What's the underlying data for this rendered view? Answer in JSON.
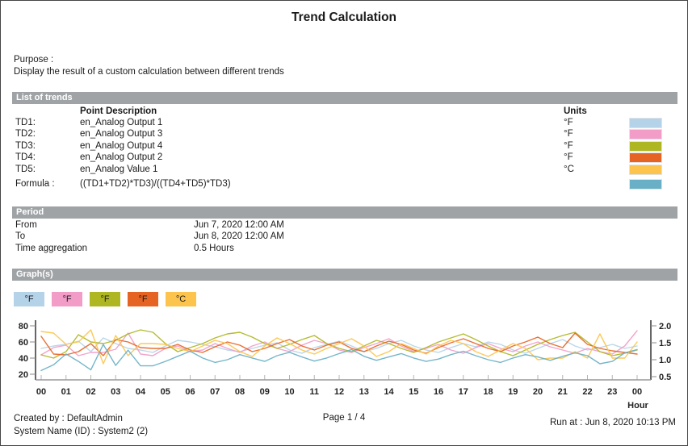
{
  "title": "Trend Calculation",
  "purpose": {
    "label": "Purpose :",
    "text": "Display the result of a custom calculation between different trends"
  },
  "sections": {
    "trends": "List of trends",
    "period": "Period",
    "graphs": "Graph(s)"
  },
  "trends": {
    "header": {
      "description": "Point Description",
      "units": "Units"
    },
    "rows": [
      {
        "id": "TD1:",
        "description": "en_Analog Output 1",
        "unit": "°F",
        "color": "#b4d2e8"
      },
      {
        "id": "TD2:",
        "description": "en_Analog Output 3",
        "unit": "°F",
        "color": "#f29cc8"
      },
      {
        "id": "TD3:",
        "description": "en_Analog Output 4",
        "unit": "°F",
        "color": "#aeb621"
      },
      {
        "id": "TD4:",
        "description": "en_Analog Output 2",
        "unit": "°F",
        "color": "#e56424"
      },
      {
        "id": "TD5:",
        "description": "en_Analog Value 1",
        "unit": "°C",
        "color": "#fcc44d"
      }
    ],
    "formula": {
      "label": "Formula :",
      "expression": "((TD1+TD2)*TD3)/((TD4+TD5)*TD3)",
      "color": "#69b0c6"
    }
  },
  "period": {
    "rows": [
      {
        "label": "From",
        "value": "Jun 7, 2020 12:00 AM"
      },
      {
        "label": "To",
        "value": "Jun 8, 2020 12:00 AM"
      },
      {
        "label": "Time aggregation",
        "value": "0.5 Hours"
      }
    ]
  },
  "legend": [
    {
      "label": "°F",
      "color": "#b4d2e8"
    },
    {
      "label": "°F",
      "color": "#f29cc8"
    },
    {
      "label": "°F",
      "color": "#aeb621"
    },
    {
      "label": "°F",
      "color": "#e56424"
    },
    {
      "label": "°C",
      "color": "#fcc44d"
    }
  ],
  "chart_data": {
    "type": "line",
    "x_label": "Hour",
    "x_start": 0,
    "x_step": 0.5,
    "x_tick_labels": [
      "00",
      "01",
      "02",
      "03",
      "04",
      "05",
      "06",
      "07",
      "08",
      "09",
      "10",
      "11",
      "12",
      "13",
      "14",
      "15",
      "16",
      "17",
      "18",
      "19",
      "20",
      "21",
      "22",
      "23",
      "00"
    ],
    "left_axis": {
      "ticks": [
        "80",
        "60",
        "40",
        "20"
      ],
      "min": 20,
      "max": 80
    },
    "right_axis": {
      "ticks": [
        "2.0",
        "1.5",
        "1.0",
        "0.5"
      ],
      "min": 0.5,
      "max": 2.0
    },
    "grid": false,
    "legend_position": "top-left",
    "series": [
      {
        "name": "TD1 en_Analog Output 1 (°F)",
        "axis": "left",
        "color": "#b4d2e8",
        "values": [
          52,
          55,
          57,
          61,
          48,
          65,
          58,
          52,
          50,
          47,
          55,
          62,
          60,
          57,
          54,
          50,
          48,
          52,
          56,
          59,
          50,
          46,
          53,
          57,
          61,
          55,
          48,
          52,
          58,
          62,
          55,
          50,
          47,
          53,
          58,
          54,
          60,
          57,
          50,
          46,
          52,
          58,
          63,
          55,
          50,
          53,
          57,
          52,
          55
        ]
      },
      {
        "name": "TD2 en_Analog Output 3 (°F)",
        "axis": "left",
        "color": "#f29cc8",
        "values": [
          44,
          53,
          56,
          43,
          47,
          47,
          51,
          71,
          45,
          43,
          52,
          55,
          48,
          50,
          58,
          52,
          47,
          55,
          60,
          52,
          48,
          56,
          62,
          58,
          50,
          47,
          53,
          58,
          64,
          55,
          48,
          52,
          57,
          50,
          46,
          53,
          58,
          52,
          48,
          55,
          60,
          54,
          50,
          46,
          52,
          48,
          45,
          55,
          74
        ]
      },
      {
        "name": "TD3 en_Analog Output 4 (°F)",
        "axis": "left",
        "color": "#aeb621",
        "values": [
          44,
          40,
          48,
          69,
          60,
          58,
          62,
          70,
          75,
          72,
          58,
          48,
          53,
          58,
          65,
          70,
          72,
          66,
          58,
          52,
          57,
          63,
          68,
          58,
          52,
          48,
          55,
          62,
          58,
          52,
          47,
          53,
          60,
          65,
          70,
          63,
          55,
          48,
          43,
          50,
          57,
          63,
          68,
          72,
          60,
          48,
          43,
          46,
          50
        ]
      },
      {
        "name": "TD4 en_Analog Output 2 (°F)",
        "axis": "left",
        "color": "#e56424",
        "values": [
          67,
          45,
          44,
          48,
          58,
          43,
          63,
          60,
          53,
          52,
          52,
          57,
          50,
          47,
          54,
          60,
          56,
          48,
          52,
          58,
          63,
          55,
          50,
          56,
          60,
          52,
          48,
          55,
          61,
          57,
          50,
          46,
          53,
          59,
          64,
          58,
          52,
          48,
          55,
          60,
          66,
          58,
          53,
          71,
          57,
          52,
          49,
          47,
          45
        ]
      },
      {
        "name": "TD5 en_Analog Value 1 (°C)",
        "axis": "left",
        "color": "#fcc44d",
        "values": [
          73,
          71,
          57,
          60,
          75,
          33,
          68,
          43,
          58,
          58,
          57,
          52,
          48,
          55,
          62,
          58,
          48,
          42,
          55,
          65,
          58,
          50,
          45,
          52,
          58,
          64,
          55,
          42,
          48,
          58,
          52,
          45,
          55,
          62,
          58,
          48,
          42,
          50,
          58,
          52,
          38,
          40,
          40,
          48,
          40,
          70,
          40,
          40,
          60
        ]
      },
      {
        "name": "Formula ((TD1+TD2)*TD3)/((TD4+TD5)*TD3)",
        "axis": "right",
        "color": "#69b0c6",
        "values": [
          0.68,
          0.85,
          1.17,
          0.95,
          0.7,
          1.45,
          0.83,
          1.28,
          0.82,
          0.82,
          0.95,
          1.1,
          1.25,
          1.05,
          0.92,
          1.0,
          1.15,
          1.05,
          0.95,
          1.12,
          1.22,
          1.08,
          0.96,
          1.05,
          1.18,
          1.3,
          1.1,
          0.98,
          1.08,
          1.18,
          1.05,
          0.95,
          1.02,
          1.15,
          1.25,
          1.12,
          1.0,
          0.92,
          1.05,
          1.15,
          1.08,
          0.98,
          1.1,
          1.2,
          1.12,
          0.88,
          0.95,
          1.2,
          1.3
        ]
      }
    ]
  },
  "footer": {
    "created_by": "Created by : DefaultAdmin",
    "system_name": "System Name (ID) : System2 (2)",
    "page": "Page  1 / 4",
    "run_at": "Run at : Jun 8, 2020 10:13 PM"
  }
}
